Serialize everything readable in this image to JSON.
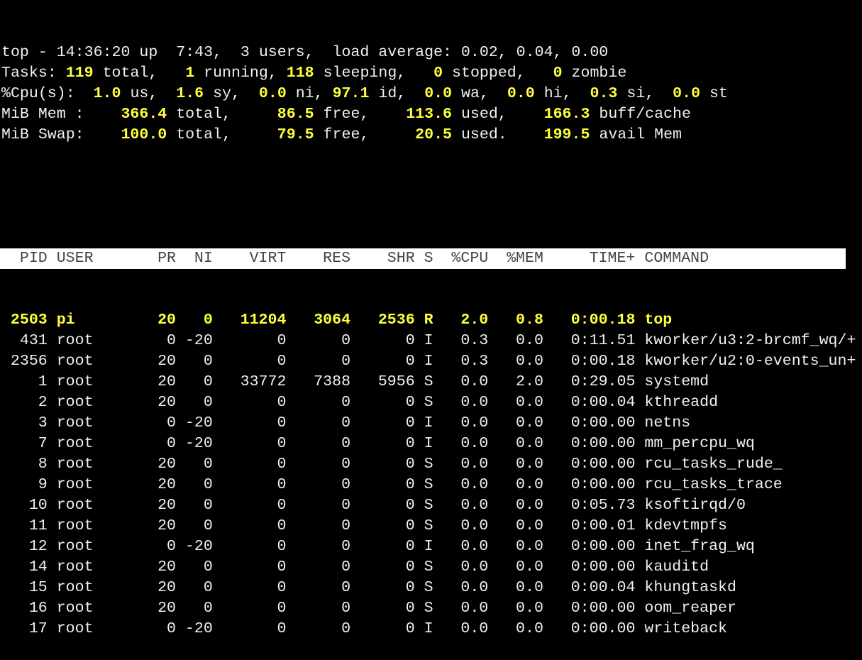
{
  "window_title": "top",
  "summary": [
    [
      {
        "t": "top - 14:36:20 up  7:43,  3 users,  load average: 0.02, 0.04, 0.00",
        "hl": false
      }
    ],
    [
      {
        "t": "Tasks: ",
        "hl": false
      },
      {
        "t": "119",
        "hl": true
      },
      {
        "t": " total,   ",
        "hl": false
      },
      {
        "t": "1",
        "hl": true
      },
      {
        "t": " running, ",
        "hl": false
      },
      {
        "t": "118",
        "hl": true
      },
      {
        "t": " sleeping,   ",
        "hl": false
      },
      {
        "t": "0",
        "hl": true
      },
      {
        "t": " stopped,   ",
        "hl": false
      },
      {
        "t": "0",
        "hl": true
      },
      {
        "t": " zombie",
        "hl": false
      }
    ],
    [
      {
        "t": "%Cpu(s):  ",
        "hl": false
      },
      {
        "t": "1.0",
        "hl": true
      },
      {
        "t": " us,  ",
        "hl": false
      },
      {
        "t": "1.6",
        "hl": true
      },
      {
        "t": " sy,  ",
        "hl": false
      },
      {
        "t": "0.0",
        "hl": true
      },
      {
        "t": " ni, ",
        "hl": false
      },
      {
        "t": "97.1",
        "hl": true
      },
      {
        "t": " id,  ",
        "hl": false
      },
      {
        "t": "0.0",
        "hl": true
      },
      {
        "t": " wa,  ",
        "hl": false
      },
      {
        "t": "0.0",
        "hl": true
      },
      {
        "t": " hi,  ",
        "hl": false
      },
      {
        "t": "0.3",
        "hl": true
      },
      {
        "t": " si,  ",
        "hl": false
      },
      {
        "t": "0.0",
        "hl": true
      },
      {
        "t": " st",
        "hl": false
      }
    ],
    [
      {
        "t": "MiB Mem :    ",
        "hl": false
      },
      {
        "t": "366.4",
        "hl": true
      },
      {
        "t": " total,     ",
        "hl": false
      },
      {
        "t": "86.5",
        "hl": true
      },
      {
        "t": " free,    ",
        "hl": false
      },
      {
        "t": "113.6",
        "hl": true
      },
      {
        "t": " used,    ",
        "hl": false
      },
      {
        "t": "166.3",
        "hl": true
      },
      {
        "t": " buff/cache",
        "hl": false
      }
    ],
    [
      {
        "t": "MiB Swap:    ",
        "hl": false
      },
      {
        "t": "100.0",
        "hl": true
      },
      {
        "t": " total,     ",
        "hl": false
      },
      {
        "t": "79.5",
        "hl": true
      },
      {
        "t": " free,     ",
        "hl": false
      },
      {
        "t": "20.5",
        "hl": true
      },
      {
        "t": " used.    ",
        "hl": false
      },
      {
        "t": "199.5",
        "hl": true
      },
      {
        "t": " avail Mem",
        "hl": false
      }
    ]
  ],
  "columns": [
    "PID",
    "USER",
    "PR",
    "NI",
    "VIRT",
    "RES",
    "SHR",
    "S",
    "%CPU",
    "%MEM",
    "TIME+",
    "COMMAND"
  ],
  "processes": [
    [
      "2503",
      "pi",
      "20",
      "0",
      "11204",
      "3064",
      "2536",
      "R",
      "2.0",
      "0.8",
      "0:00.18",
      "top"
    ],
    [
      "431",
      "root",
      "0",
      "-20",
      "0",
      "0",
      "0",
      "I",
      "0.3",
      "0.0",
      "0:11.51",
      "kworker/u3:2-brcmf_wq/+"
    ],
    [
      "2356",
      "root",
      "20",
      "0",
      "0",
      "0",
      "0",
      "I",
      "0.3",
      "0.0",
      "0:00.18",
      "kworker/u2:0-events_un+"
    ],
    [
      "1",
      "root",
      "20",
      "0",
      "33772",
      "7388",
      "5956",
      "S",
      "0.0",
      "2.0",
      "0:29.05",
      "systemd"
    ],
    [
      "2",
      "root",
      "20",
      "0",
      "0",
      "0",
      "0",
      "S",
      "0.0",
      "0.0",
      "0:00.04",
      "kthreadd"
    ],
    [
      "3",
      "root",
      "0",
      "-20",
      "0",
      "0",
      "0",
      "I",
      "0.0",
      "0.0",
      "0:00.00",
      "netns"
    ],
    [
      "7",
      "root",
      "0",
      "-20",
      "0",
      "0",
      "0",
      "I",
      "0.0",
      "0.0",
      "0:00.00",
      "mm_percpu_wq"
    ],
    [
      "8",
      "root",
      "20",
      "0",
      "0",
      "0",
      "0",
      "S",
      "0.0",
      "0.0",
      "0:00.00",
      "rcu_tasks_rude_"
    ],
    [
      "9",
      "root",
      "20",
      "0",
      "0",
      "0",
      "0",
      "S",
      "0.0",
      "0.0",
      "0:00.00",
      "rcu_tasks_trace"
    ],
    [
      "10",
      "root",
      "20",
      "0",
      "0",
      "0",
      "0",
      "S",
      "0.0",
      "0.0",
      "0:05.73",
      "ksoftirqd/0"
    ],
    [
      "11",
      "root",
      "20",
      "0",
      "0",
      "0",
      "0",
      "S",
      "0.0",
      "0.0",
      "0:00.01",
      "kdevtmpfs"
    ],
    [
      "12",
      "root",
      "0",
      "-20",
      "0",
      "0",
      "0",
      "I",
      "0.0",
      "0.0",
      "0:00.00",
      "inet_frag_wq"
    ],
    [
      "14",
      "root",
      "20",
      "0",
      "0",
      "0",
      "0",
      "S",
      "0.0",
      "0.0",
      "0:00.00",
      "kauditd"
    ],
    [
      "15",
      "root",
      "20",
      "0",
      "0",
      "0",
      "0",
      "S",
      "0.0",
      "0.0",
      "0:00.04",
      "khungtaskd"
    ],
    [
      "16",
      "root",
      "20",
      "0",
      "0",
      "0",
      "0",
      "S",
      "0.0",
      "0.0",
      "0:00.00",
      "oom_reaper"
    ],
    [
      "17",
      "root",
      "0",
      "-20",
      "0",
      "0",
      "0",
      "I",
      "0.0",
      "0.0",
      "0:00.00",
      "writeback"
    ]
  ],
  "highlighted_row": 0,
  "colors": {
    "highlight": "#ffff3c",
    "text": "#f0f0f0",
    "background": "#000000",
    "header_bg": "#ffffff"
  }
}
